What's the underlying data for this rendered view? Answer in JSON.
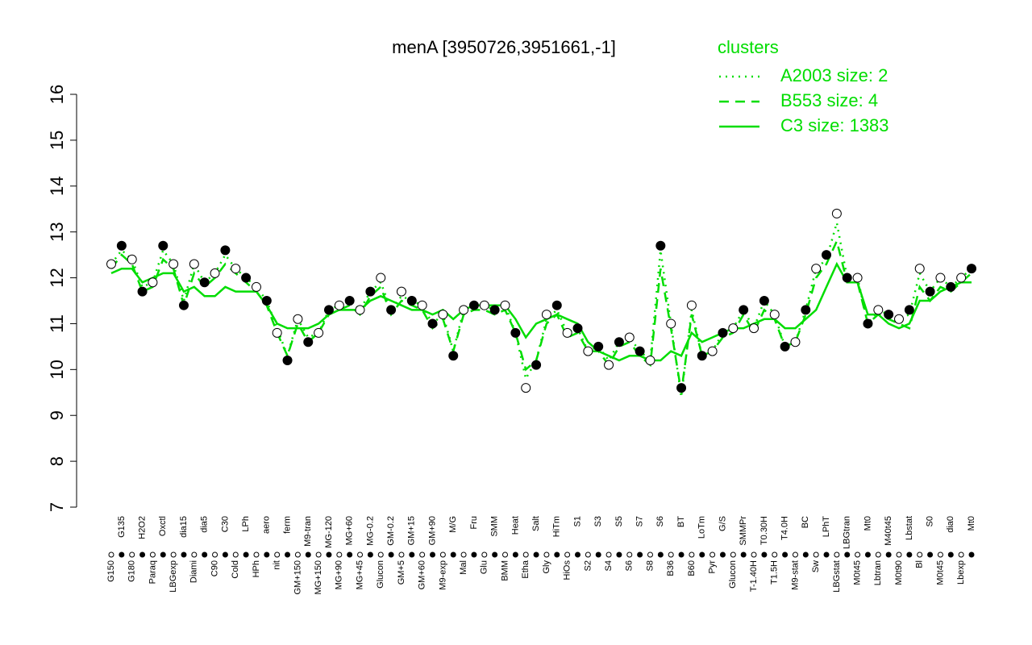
{
  "chart_data": {
    "type": "line",
    "title": "menA [3950726,3951661,-1]",
    "legend_title": "clusters",
    "legend": "topright",
    "ylim": [
      7,
      16
    ],
    "yticks": [
      7,
      8,
      9,
      10,
      11,
      12,
      13,
      14,
      15,
      16
    ],
    "point_colors": [
      "#000000",
      "#ffffff"
    ],
    "categories": [
      "G150",
      "G135",
      "G180",
      "H2O2",
      "Paraq",
      "Oxctl",
      "LBGexp",
      "dia15",
      "Diami",
      "dia5",
      "C90",
      "C30",
      "Cold",
      "LPh",
      "HPh",
      "aero",
      "nit",
      "ferm",
      "GM+150",
      "M9-tran",
      "MG+150",
      "MG-120",
      "MG+90",
      "MG+60",
      "MG+45",
      "MG-0.2",
      "Glucon",
      "GM-0.2",
      "GM+5",
      "GM+15",
      "GM+60",
      "GM+90",
      "M9-exp",
      "M/G",
      "Mal",
      "Fru",
      "Glu",
      "SMM",
      "BMM",
      "Heat",
      "Etha",
      "Salt",
      "Gly",
      "HiTm",
      "HiOs",
      "S1",
      "S2",
      "S3",
      "S4",
      "S5",
      "S6",
      "S7",
      "S8",
      "S6",
      "B36",
      "BT",
      "B60",
      "LoTm",
      "Pyr",
      "G/S",
      "Glucon",
      "SMMPr",
      "T-1.40H",
      "T0.30H",
      "T1.5H",
      "T4.0H",
      "M9-stat",
      "BC",
      "Sw",
      "LPhT",
      "LBGstat",
      "LBGtran",
      "M0t45",
      "Mt0",
      "Lbtran",
      "M40t45",
      "M0t90",
      "Lbstat",
      "Bl",
      "S0",
      "M0t45",
      "dia0",
      "Lbexp",
      "Mt0"
    ],
    "values": [
      12.3,
      12.7,
      12.4,
      11.7,
      11.9,
      12.7,
      12.3,
      11.4,
      12.3,
      11.9,
      12.1,
      12.6,
      12.2,
      12.0,
      11.8,
      11.5,
      10.8,
      10.2,
      11.1,
      10.6,
      10.8,
      11.3,
      11.4,
      11.5,
      11.3,
      11.7,
      12.0,
      11.3,
      11.7,
      11.5,
      11.4,
      11.0,
      11.2,
      10.3,
      11.3,
      11.4,
      11.4,
      11.3,
      11.4,
      10.8,
      9.6,
      10.1,
      11.2,
      11.4,
      10.8,
      10.9,
      10.4,
      10.5,
      10.1,
      10.6,
      10.7,
      10.4,
      10.2,
      12.7,
      11.0,
      9.6,
      11.4,
      10.3,
      10.4,
      10.8,
      10.9,
      11.3,
      10.9,
      11.5,
      11.2,
      10.5,
      10.6,
      11.3,
      12.2,
      12.5,
      13.4,
      12.0,
      12.0,
      11.0,
      11.3,
      11.2,
      11.1,
      11.3,
      12.2,
      11.7,
      12.0,
      11.8,
      12.0,
      12.2
    ],
    "series": [
      {
        "name": "A2003 size: 2",
        "color": "#00dd00",
        "dash": "dotted",
        "values": [
          12.3,
          12.6,
          12.4,
          11.8,
          11.9,
          12.6,
          12.3,
          11.5,
          12.3,
          11.9,
          12.1,
          12.5,
          12.2,
          12.0,
          11.8,
          11.5,
          10.9,
          10.3,
          11.1,
          10.7,
          10.8,
          11.3,
          11.4,
          11.5,
          11.3,
          11.7,
          11.9,
          11.3,
          11.6,
          11.5,
          11.4,
          11.0,
          11.2,
          10.4,
          11.3,
          11.4,
          11.4,
          11.3,
          11.4,
          10.8,
          9.8,
          10.2,
          11.1,
          11.3,
          10.8,
          10.9,
          10.4,
          10.5,
          10.2,
          10.6,
          10.7,
          10.4,
          10.2,
          12.6,
          11.0,
          9.4,
          11.3,
          10.3,
          10.4,
          10.8,
          10.9,
          11.3,
          10.9,
          11.5,
          11.2,
          10.5,
          10.6,
          11.3,
          12.2,
          12.4,
          13.2,
          12.0,
          12.0,
          11.0,
          11.3,
          11.2,
          11.1,
          11.2,
          12.1,
          11.7,
          12.0,
          11.8,
          12.0,
          12.2
        ]
      },
      {
        "name": "B553 size: 4",
        "color": "#00dd00",
        "dash": "dashed",
        "values": [
          12.2,
          12.5,
          12.3,
          11.7,
          11.8,
          12.4,
          12.2,
          11.4,
          12.1,
          11.8,
          12.0,
          12.3,
          12.1,
          11.9,
          11.7,
          11.4,
          10.8,
          10.3,
          11.0,
          10.6,
          10.8,
          11.2,
          11.3,
          11.4,
          11.2,
          11.6,
          11.8,
          11.2,
          11.5,
          11.4,
          11.3,
          10.9,
          11.1,
          10.4,
          11.2,
          11.3,
          11.3,
          11.2,
          11.3,
          10.8,
          10.0,
          10.2,
          11.0,
          11.2,
          10.7,
          10.8,
          10.4,
          10.4,
          10.1,
          10.5,
          10.6,
          10.3,
          10.1,
          12.2,
          10.9,
          9.5,
          11.2,
          10.3,
          10.4,
          10.7,
          10.8,
          11.2,
          10.8,
          11.3,
          11.1,
          10.5,
          10.6,
          11.2,
          12.0,
          12.3,
          12.8,
          11.9,
          11.9,
          11.0,
          11.2,
          11.1,
          11.0,
          10.9,
          11.8,
          11.5,
          11.8,
          11.7,
          11.9,
          12.1
        ]
      },
      {
        "name": "C3 size: 1383",
        "color": "#00dd00",
        "dash": "solid",
        "values": [
          12.1,
          12.2,
          12.2,
          11.9,
          12.0,
          12.1,
          12.1,
          11.7,
          11.8,
          11.6,
          11.6,
          11.8,
          11.7,
          11.7,
          11.7,
          11.4,
          11.0,
          10.9,
          10.9,
          10.9,
          11.0,
          11.2,
          11.3,
          11.3,
          11.3,
          11.5,
          11.6,
          11.5,
          11.4,
          11.3,
          11.3,
          11.2,
          11.3,
          11.1,
          11.3,
          11.4,
          11.4,
          11.4,
          11.4,
          11.1,
          10.7,
          11.0,
          11.1,
          11.2,
          11.1,
          11.0,
          10.6,
          10.4,
          10.3,
          10.2,
          10.3,
          10.3,
          10.2,
          10.2,
          10.4,
          10.3,
          10.8,
          10.6,
          10.7,
          10.8,
          10.9,
          10.9,
          11.0,
          11.1,
          11.1,
          10.9,
          10.9,
          11.1,
          11.3,
          11.8,
          12.3,
          11.9,
          11.9,
          11.2,
          11.2,
          11.0,
          10.9,
          11.0,
          11.5,
          11.5,
          11.7,
          11.8,
          11.9,
          11.9
        ]
      }
    ]
  }
}
